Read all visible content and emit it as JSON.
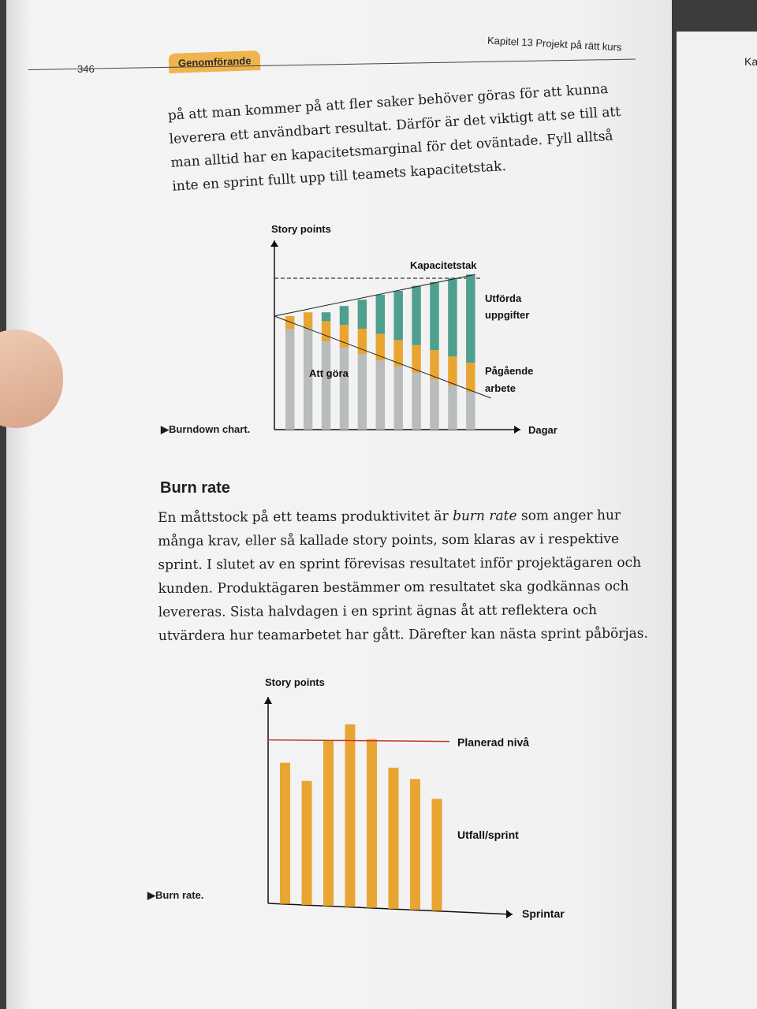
{
  "page": {
    "number": "346",
    "section_tab": "Genomförande",
    "chapter_header": "Kapitel 13  Projekt på rätt kurs",
    "right_page_fragment": "Ka"
  },
  "paragraph1": "på att man kommer på att fler saker behöver göras för att kunna leverera ett användbart resultat. Därför är det viktigt att se till att man alltid har en kapacitetsmarginal för det oväntade. Fyll alltså inte en sprint fullt upp till teamets kapacitetstak.",
  "burndown": {
    "caption": "Burndown chart.",
    "chart_data": {
      "type": "bar",
      "ylabel": "Story points",
      "xlabel": "Dagar",
      "annotations": [
        "Kapacitetstak",
        "Utförda uppgifter",
        "Pågående arbete",
        "Att göra"
      ],
      "series": [
        {
          "name": "Att göra",
          "color": "#b9bcbd",
          "values": [
            8,
            8,
            7,
            6.5,
            6,
            5.5,
            5,
            4.5,
            4,
            3.5,
            3
          ]
        },
        {
          "name": "Pågående arbete",
          "color": "#e9a532",
          "values": [
            1,
            1.3,
            1.6,
            1.8,
            2,
            2.1,
            2.1,
            2.2,
            2.3,
            2.3,
            2.3
          ]
        },
        {
          "name": "Utförda uppgifter",
          "color": "#4e9f8e",
          "values": [
            0,
            0,
            0.7,
            1.5,
            2.3,
            3.1,
            3.9,
            4.7,
            5.4,
            6.2,
            7
          ]
        }
      ],
      "capacity_ceiling": 12
    }
  },
  "burn_rate_heading": "Burn rate",
  "paragraph2": {
    "before": "En måttstock på ett teams produktivitet är ",
    "emph": "burn rate",
    "after": " som anger hur många krav, eller så kallade story points, som klaras av i respektive sprint. I slutet av en sprint förevisas resultatet inför projektägaren och kunden. Produktägaren bestämmer om resultatet ska godkännas och levereras. Sista halvdagen i en sprint ägnas åt att reflektera och utvärdera hur teamarbetet har gått. Därefter kan nästa sprint påbörjas."
  },
  "burnrate": {
    "caption": "Burn rate.",
    "chart_data": {
      "type": "bar",
      "ylabel": "Story points",
      "xlabel": "Sprintar",
      "planned_level": 9.5,
      "planned_label": "Planerad nivå",
      "series_label": "Utfall/sprint",
      "values": [
        8.2,
        7.2,
        9.6,
        10.6,
        9.8,
        8.2,
        7.6,
        6.5
      ],
      "ylim": [
        0,
        12
      ],
      "bar_color": "#e9a532",
      "line_color": "#c0392b"
    }
  }
}
